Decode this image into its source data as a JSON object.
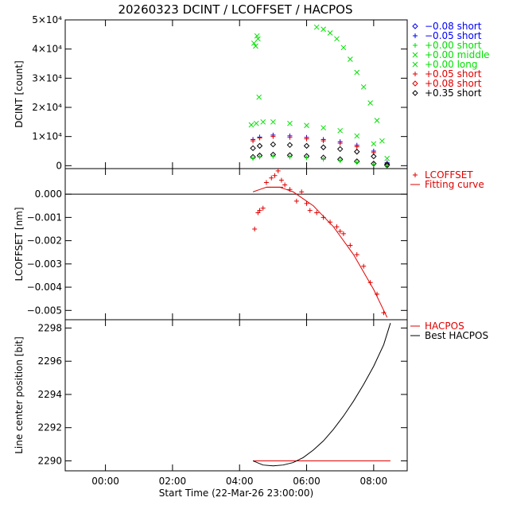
{
  "title": "20260323 DCINT / LCOFFSET / HACPOS",
  "colors": {
    "blue": "#0000ff",
    "green": "#00e000",
    "red": "#e00000",
    "black": "#000000"
  },
  "chart_data": [
    {
      "type": "scatter",
      "name": "dcint-panel",
      "ylabel": "DCINT [count]",
      "xlabel": "",
      "xlim": [
        -1.2,
        9.0
      ],
      "ylim": [
        -1000,
        50000
      ],
      "yticks": [
        {
          "value": 0,
          "label": "0"
        },
        {
          "value": 10000,
          "label": "1×10⁴"
        },
        {
          "value": 20000,
          "label": "2×10⁴"
        },
        {
          "value": 30000,
          "label": "3×10⁴"
        },
        {
          "value": 40000,
          "label": "4×10⁴"
        },
        {
          "value": 50000,
          "label": "5×10⁴"
        }
      ],
      "legend": {
        "position": "outside-right",
        "entries": [
          {
            "symbol": "diamond",
            "color": "#0000ff",
            "label": "−0.08 short"
          },
          {
            "symbol": "plus",
            "color": "#0000ff",
            "label": "−0.05 short"
          },
          {
            "symbol": "plus",
            "color": "#00e000",
            "label": "+0.00 short"
          },
          {
            "symbol": "cross",
            "color": "#00e000",
            "label": "+0.00 middle"
          },
          {
            "symbol": "cross",
            "color": "#00e000",
            "label": "+0.00 long"
          },
          {
            "symbol": "plus",
            "color": "#e00000",
            "label": "+0.05 short"
          },
          {
            "symbol": "diamond",
            "color": "#e00000",
            "label": "+0.08 short"
          },
          {
            "symbol": "diamond",
            "color": "#000000",
            "label": "+0.35 short"
          }
        ]
      },
      "series": [
        {
          "symbol": "cross",
          "color": "#00e000",
          "x": [
            4.43,
            4.48,
            4.52,
            4.55,
            4.58
          ],
          "y": [
            42000,
            41000,
            44500,
            43500,
            23500
          ]
        },
        {
          "symbol": "cross",
          "color": "#00e000",
          "x": [
            6.3,
            6.5,
            6.7,
            6.9,
            7.1,
            7.3,
            7.5,
            7.7,
            7.9,
            8.1,
            8.25
          ],
          "y": [
            47500,
            46800,
            45500,
            43500,
            40500,
            36500,
            32000,
            27000,
            21500,
            15500,
            8500
          ]
        },
        {
          "symbol": "cross",
          "color": "#00e000",
          "x": [
            4.35,
            4.5,
            4.7,
            5.0,
            5.5,
            6.0,
            6.5,
            7.0,
            7.5,
            8.0,
            8.4
          ],
          "y": [
            14000,
            14500,
            15000,
            15000,
            14500,
            13800,
            13000,
            12000,
            10200,
            7500,
            2500
          ]
        },
        {
          "symbol": "plus",
          "color": "#0000ff",
          "x": [
            4.4,
            4.6,
            5.0,
            5.5,
            6.0,
            6.5,
            7.0,
            7.5,
            8.0,
            8.4
          ],
          "y": [
            9000,
            9800,
            10500,
            10200,
            9700,
            9000,
            8200,
            7000,
            5000,
            1000
          ]
        },
        {
          "symbol": "plus",
          "color": "#e00000",
          "x": [
            4.4,
            4.6,
            5.0,
            5.5,
            6.0,
            6.5,
            7.0,
            7.5,
            8.0,
            8.4
          ],
          "y": [
            8500,
            9500,
            10000,
            9700,
            9200,
            8500,
            7700,
            6500,
            4500,
            800
          ]
        },
        {
          "symbol": "diamond",
          "color": "#000000",
          "x": [
            4.4,
            4.6,
            5.0,
            5.5,
            6.0,
            6.5,
            7.0,
            7.5,
            8.0,
            8.4
          ],
          "y": [
            6000,
            6800,
            7300,
            7100,
            6800,
            6300,
            5700,
            4800,
            3200,
            400
          ]
        },
        {
          "symbol": "diamond",
          "color": "#000000",
          "x": [
            4.4,
            4.6,
            5.0,
            5.5,
            6.0,
            6.5,
            7.0,
            7.5,
            8.0,
            8.4
          ],
          "y": [
            3000,
            3500,
            3800,
            3600,
            3300,
            2800,
            2200,
            1500,
            700,
            100
          ]
        },
        {
          "symbol": "plus",
          "color": "#00e000",
          "x": [
            4.4,
            4.6,
            5.0,
            5.5,
            6.0,
            6.5,
            7.0,
            7.5,
            8.0,
            8.4
          ],
          "y": [
            2500,
            3000,
            3200,
            3000,
            2700,
            2200,
            1700,
            1100,
            400,
            0
          ]
        }
      ]
    },
    {
      "type": "scatter",
      "name": "lcoffset-panel",
      "ylabel": "LCOFFSET [nm]",
      "xlabel": "",
      "xlim": [
        -1.2,
        9.0
      ],
      "ylim": [
        -0.0054,
        0.0011
      ],
      "yticks": [
        {
          "value": 0.0,
          "label": "0.000"
        },
        {
          "value": -0.001,
          "label": "−0.001"
        },
        {
          "value": -0.002,
          "label": "−0.002"
        },
        {
          "value": -0.003,
          "label": "−0.003"
        },
        {
          "value": -0.004,
          "label": "−0.004"
        },
        {
          "value": -0.005,
          "label": "−0.005"
        }
      ],
      "zero_line": true,
      "legend": {
        "position": "outside-right",
        "entries": [
          {
            "symbol": "plus",
            "color": "#e00000",
            "label": "LCOFFSET"
          },
          {
            "symbol": "line",
            "color": "#e00000",
            "label": "Fitting curve"
          }
        ]
      },
      "points": {
        "x": [
          4.45,
          4.55,
          4.6,
          4.7,
          4.8,
          4.95,
          5.05,
          5.15,
          5.25,
          5.35,
          5.5,
          5.7,
          5.85,
          6.0,
          6.1,
          6.3,
          6.5,
          6.7,
          6.9,
          7.0,
          7.1,
          7.3,
          7.5,
          7.7,
          7.9,
          8.1,
          8.3
        ],
        "y": [
          -0.0015,
          -0.0008,
          -0.0007,
          -0.0006,
          0.0005,
          0.0007,
          0.0008,
          0.001,
          0.0006,
          0.0004,
          0.0002,
          -0.0003,
          0.0001,
          -0.0004,
          -0.0007,
          -0.0008,
          -0.001,
          -0.0012,
          -0.0014,
          -0.0016,
          -0.0017,
          -0.0022,
          -0.0026,
          -0.0031,
          -0.0038,
          -0.0043,
          -0.0051
        ]
      },
      "fit": {
        "x": [
          4.4,
          4.6,
          4.8,
          5.0,
          5.2,
          5.4,
          5.6,
          5.8,
          6.0,
          6.2,
          6.4,
          6.6,
          6.8,
          7.0,
          7.2,
          7.4,
          7.6,
          7.8,
          8.0,
          8.2,
          8.4
        ],
        "y": [
          0.0001,
          0.0002,
          0.0003,
          0.0003,
          0.0003,
          0.0002,
          0.0001,
          -0.0001,
          -0.0003,
          -0.0005,
          -0.0008,
          -0.0011,
          -0.0014,
          -0.0018,
          -0.0022,
          -0.0026,
          -0.0031,
          -0.0036,
          -0.0041,
          -0.0047,
          -0.0053
        ]
      },
      "flat_segment": {
        "x": [
          4.8,
          5.3
        ],
        "y": 0.0003
      }
    },
    {
      "type": "line",
      "name": "hacpos-panel",
      "ylabel": "Line center position [bit]",
      "xlabel": "Start Time (22-Mar-26 23:00:00)",
      "xlim": [
        -1.2,
        9.0
      ],
      "ylim": [
        2289.4,
        2298.5
      ],
      "xticks": [
        {
          "value": 0,
          "label": "00:00"
        },
        {
          "value": 2,
          "label": "02:00"
        },
        {
          "value": 4,
          "label": "04:00"
        },
        {
          "value": 6,
          "label": "06:00"
        },
        {
          "value": 8,
          "label": "08:00"
        }
      ],
      "yticks": [
        {
          "value": 2290,
          "label": "2290"
        },
        {
          "value": 2292,
          "label": "2292"
        },
        {
          "value": 2294,
          "label": "2294"
        },
        {
          "value": 2296,
          "label": "2296"
        },
        {
          "value": 2298,
          "label": "2298"
        }
      ],
      "legend": {
        "position": "outside-right",
        "entries": [
          {
            "symbol": "line",
            "color": "#e00000",
            "label": "HACPOS"
          },
          {
            "symbol": "line",
            "color": "#000000",
            "label": "Best HACPOS"
          }
        ]
      },
      "hacpos": {
        "x": [
          4.4,
          8.5
        ],
        "y": [
          2290.0,
          2290.0
        ]
      },
      "best_hacpos": {
        "x": [
          4.4,
          4.7,
          5.0,
          5.3,
          5.6,
          5.9,
          6.2,
          6.5,
          6.8,
          7.1,
          7.4,
          7.7,
          8.0,
          8.3,
          8.5
        ],
        "y": [
          2290.0,
          2289.75,
          2289.7,
          2289.75,
          2289.9,
          2290.2,
          2290.65,
          2291.2,
          2291.9,
          2292.7,
          2293.6,
          2294.6,
          2295.7,
          2297.0,
          2298.3
        ]
      }
    }
  ]
}
